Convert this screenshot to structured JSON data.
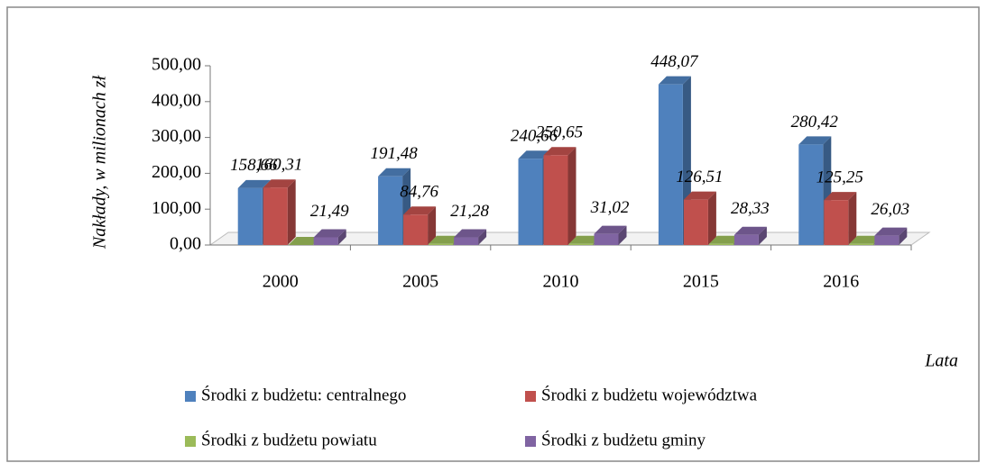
{
  "chart_data": {
    "type": "bar3d",
    "y_label": "Nakłady, w milionach zł",
    "x_label": "Lata",
    "categories": [
      "2000",
      "2005",
      "2010",
      "2015",
      "2016"
    ],
    "series": [
      {
        "name": "Środki z budżetu: centralnego",
        "color": "#4f81bd",
        "values": [
          158.66,
          191.48,
          240.66,
          448.07,
          280.42
        ],
        "value_labels": [
          "158,66",
          "191,48",
          "240,66",
          "448,07",
          "280,42"
        ]
      },
      {
        "name": "Środki z budżetu województwa",
        "color": "#c0504d",
        "values": [
          160.31,
          84.76,
          250.65,
          126.51,
          125.25
        ],
        "value_labels": [
          "160,31",
          "84,76",
          "250,65",
          "126,51",
          "125,25"
        ]
      },
      {
        "name": "Środki z budżetu powiatu",
        "color": "#9bbb59",
        "values": [
          0,
          3,
          3,
          3,
          3
        ]
      },
      {
        "name": "Środki z budżetu gminy",
        "color": "#8064a2",
        "values": [
          21.49,
          21.28,
          31.02,
          28.33,
          26.03
        ],
        "value_labels": [
          "21,49",
          "21,28",
          "31,02",
          "28,33",
          "26,03"
        ]
      }
    ],
    "ylim": [
      0,
      500
    ],
    "yticks": [
      {
        "value": 0,
        "label": "0,00"
      },
      {
        "value": 100,
        "label": "100,00"
      },
      {
        "value": 200,
        "label": "200,00"
      },
      {
        "value": 300,
        "label": "300,00"
      },
      {
        "value": 400,
        "label": "400,00"
      },
      {
        "value": 500,
        "label": "500,00"
      }
    ],
    "grid": false
  }
}
